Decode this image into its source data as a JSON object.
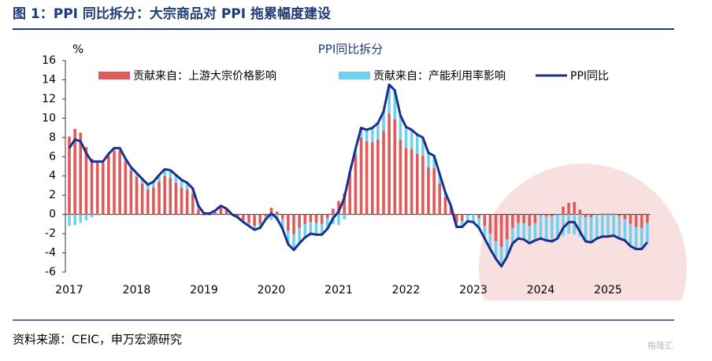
{
  "header": {
    "title": "图 1：PPI 同比拆分：大宗商品对 PPI 拖累幅度建设"
  },
  "footer": {
    "source": "资料来源：CEIC，申万宏源研究",
    "watermark": "格隆汇"
  },
  "chart_data": {
    "type": "bar-line",
    "title": "PPI同比拆分",
    "y_label": "%",
    "categories": [
      "2017",
      null,
      null,
      null,
      null,
      null,
      null,
      null,
      null,
      null,
      null,
      null,
      "2018",
      null,
      null,
      null,
      null,
      null,
      null,
      null,
      null,
      null,
      null,
      null,
      "2019",
      null,
      null,
      null,
      null,
      null,
      null,
      null,
      null,
      null,
      null,
      null,
      "2020",
      null,
      null,
      null,
      null,
      null,
      null,
      null,
      null,
      null,
      null,
      null,
      "2021",
      null,
      null,
      null,
      null,
      null,
      null,
      null,
      null,
      null,
      null,
      null,
      "2022",
      null,
      null,
      null,
      null,
      null,
      null,
      null,
      null,
      null,
      null,
      null,
      "2023",
      null,
      null,
      null,
      null,
      null,
      null,
      null,
      null,
      null,
      null,
      null,
      "2024",
      null,
      null,
      null,
      null,
      null,
      null,
      null,
      null,
      null,
      null,
      null,
      "2025",
      null,
      null,
      null,
      null,
      null,
      null,
      null
    ],
    "series": [
      {
        "name": "贡献来自：上游大宗价格影响",
        "kind": "bar",
        "color": "#e05a5a",
        "values": [
          8.1,
          8.9,
          8.5,
          7.0,
          5.8,
          5.6,
          5.4,
          6.1,
          6.6,
          6.6,
          5.5,
          4.6,
          3.9,
          3.2,
          2.6,
          2.8,
          3.4,
          4.0,
          3.8,
          3.3,
          2.8,
          2.6,
          2.1,
          0.5,
          -0.1,
          -0.1,
          0.2,
          0.7,
          0.5,
          0.0,
          -0.2,
          -0.6,
          -0.9,
          -1.2,
          -1.0,
          -0.2,
          0.7,
          0.3,
          -0.5,
          -1.7,
          -2.1,
          -1.4,
          -1.0,
          -0.8,
          -0.9,
          -1.0,
          -0.4,
          0.6,
          1.4,
          2.2,
          4.2,
          6.2,
          8.0,
          7.6,
          7.5,
          7.8,
          8.7,
          10.5,
          9.9,
          7.8,
          6.9,
          6.8,
          6.3,
          6.1,
          4.9,
          4.8,
          3.2,
          1.8,
          0.8,
          -0.9,
          -0.7,
          -0.1,
          0.0,
          -0.4,
          -1.2,
          -2.0,
          -2.8,
          -3.4,
          -2.6,
          -1.4,
          -0.9,
          -0.9,
          -1.2,
          -0.9,
          -0.1,
          -0.2,
          -0.2,
          0.0,
          0.8,
          1.2,
          1.3,
          0.5,
          -0.3,
          -0.3,
          0.0,
          0.1,
          0.1,
          0.1,
          -0.2,
          -0.5,
          -1.0,
          -1.3,
          -1.4,
          -0.9
        ]
      },
      {
        "name": "贡献来自：产能利用率影响",
        "kind": "bar",
        "color": "#6fd0f0",
        "values": [
          -1.2,
          -1.1,
          -0.9,
          -0.6,
          -0.3,
          -0.1,
          0.1,
          0.2,
          0.3,
          0.3,
          0.3,
          0.3,
          0.4,
          0.5,
          0.5,
          0.6,
          0.7,
          0.7,
          0.8,
          0.8,
          0.8,
          0.7,
          0.6,
          0.4,
          0.2,
          0.2,
          0.2,
          0.2,
          0.1,
          0.0,
          -0.1,
          -0.2,
          -0.3,
          -0.4,
          -0.4,
          -0.3,
          -0.6,
          -0.7,
          -1.0,
          -1.4,
          -1.6,
          -1.6,
          -1.4,
          -1.2,
          -1.2,
          -1.1,
          -1.1,
          -1.0,
          -1.1,
          -0.5,
          0.2,
          0.6,
          1.0,
          1.2,
          1.5,
          1.7,
          2.0,
          3.0,
          3.0,
          2.5,
          2.2,
          2.0,
          2.0,
          1.9,
          1.5,
          1.3,
          1.0,
          0.5,
          0.1,
          -0.4,
          -0.6,
          -0.6,
          -0.8,
          -1.0,
          -1.3,
          -1.6,
          -1.8,
          -2.0,
          -1.8,
          -1.6,
          -1.6,
          -1.7,
          -1.8,
          -1.8,
          -2.4,
          -2.5,
          -2.6,
          -2.5,
          -2.2,
          -2.0,
          -2.1,
          -2.3,
          -2.5,
          -2.6,
          -2.5,
          -2.4,
          -2.4,
          -2.3,
          -2.3,
          -2.2,
          -2.3,
          -2.3,
          -2.2,
          -2.0
        ]
      },
      {
        "name": "PPI同比",
        "kind": "line",
        "color": "#1a2f8a",
        "values": [
          6.9,
          7.8,
          7.6,
          6.4,
          5.5,
          5.5,
          5.5,
          6.3,
          6.9,
          6.9,
          5.8,
          4.9,
          4.3,
          3.7,
          3.1,
          3.4,
          4.1,
          4.7,
          4.6,
          4.1,
          3.6,
          3.3,
          2.7,
          0.9,
          0.1,
          0.1,
          0.4,
          0.9,
          0.6,
          0.0,
          -0.3,
          -0.8,
          -1.2,
          -1.6,
          -1.4,
          -0.5,
          0.1,
          -0.4,
          -1.5,
          -3.1,
          -3.7,
          -3.0,
          -2.4,
          -2.0,
          -2.1,
          -2.1,
          -1.5,
          -0.4,
          0.3,
          1.7,
          4.4,
          6.8,
          9.0,
          8.8,
          9.0,
          9.5,
          10.7,
          13.5,
          12.9,
          10.3,
          9.1,
          8.8,
          8.3,
          8.0,
          6.4,
          6.1,
          4.2,
          2.3,
          0.9,
          -1.3,
          -1.3,
          -0.7,
          -0.8,
          -1.4,
          -2.5,
          -3.6,
          -4.6,
          -5.4,
          -4.4,
          -3.0,
          -2.5,
          -2.6,
          -3.0,
          -2.7,
          -2.5,
          -2.7,
          -2.8,
          -2.5,
          -1.4,
          -0.8,
          -0.8,
          -1.8,
          -2.8,
          -2.9,
          -2.5,
          -2.3,
          -2.3,
          -2.2,
          -2.5,
          -2.7,
          -3.3,
          -3.6,
          -3.6,
          -2.9
        ]
      }
    ],
    "ylim": [
      -6,
      16
    ],
    "yticks": [
      -6,
      -4,
      -2,
      0,
      2,
      4,
      6,
      8,
      10,
      12,
      14,
      16
    ]
  }
}
